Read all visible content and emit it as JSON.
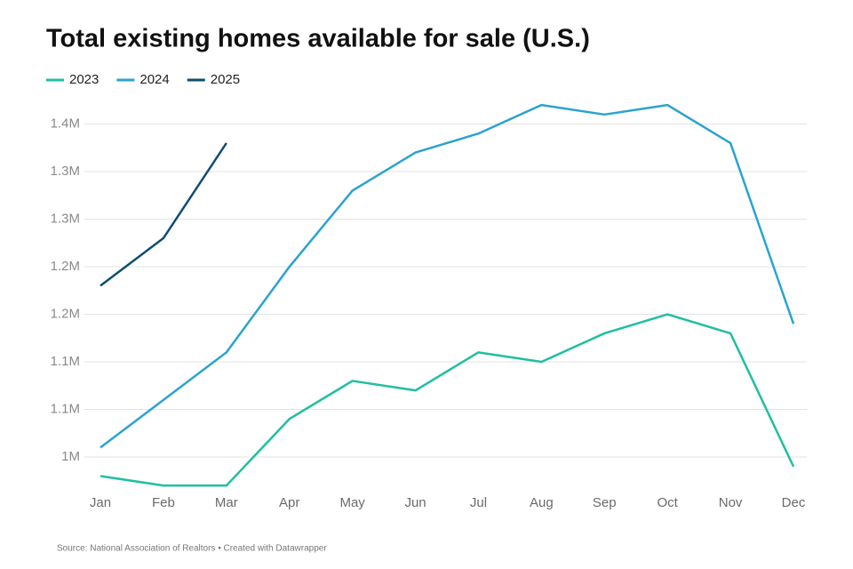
{
  "chart_data": {
    "type": "line",
    "title": "Total existing homes available for sale (U.S.)",
    "source": "Source: National Association of Realtors • Created with Datawrapper",
    "categories": [
      "Jan",
      "Feb",
      "Mar",
      "Apr",
      "May",
      "Jun",
      "Jul",
      "Aug",
      "Sep",
      "Oct",
      "Nov",
      "Dec"
    ],
    "series": [
      {
        "name": "2023",
        "color": "#1fbfa0",
        "values": [
          980000,
          970000,
          970000,
          1040000,
          1080000,
          1070000,
          1110000,
          1100000,
          1130000,
          1150000,
          1130000,
          990000
        ]
      },
      {
        "name": "2024",
        "color": "#2aa3d1",
        "values": [
          1010000,
          1060000,
          1110000,
          1200000,
          1280000,
          1320000,
          1340000,
          1370000,
          1360000,
          1370000,
          1330000,
          1140000
        ]
      },
      {
        "name": "2025",
        "color": "#0e4d70",
        "values": [
          1180000,
          1230000,
          1330000,
          null,
          null,
          null,
          null,
          null,
          null,
          null,
          null,
          null
        ]
      }
    ],
    "ylim": [
      965000,
      1390000
    ],
    "yticks": [
      {
        "value": 1000000,
        "label": "1M"
      },
      {
        "value": 1050000,
        "label": "1.1M"
      },
      {
        "value": 1100000,
        "label": "1.1M"
      },
      {
        "value": 1150000,
        "label": "1.2M"
      },
      {
        "value": 1200000,
        "label": "1.2M"
      },
      {
        "value": 1250000,
        "label": "1.3M"
      },
      {
        "value": 1300000,
        "label": "1.3M"
      },
      {
        "value": 1350000,
        "label": "1.4M"
      }
    ],
    "grid": true,
    "legend": "top-left"
  }
}
